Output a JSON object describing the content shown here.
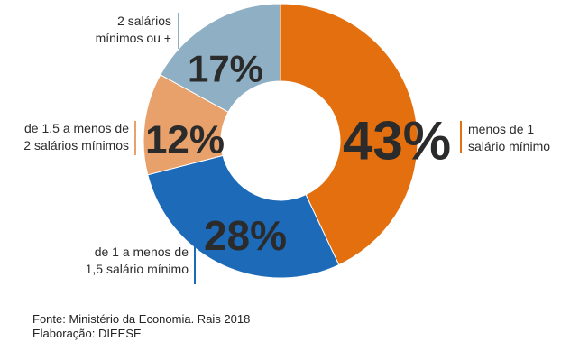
{
  "chart_data": {
    "type": "donut",
    "slices": [
      {
        "label_lines": [
          "menos de 1",
          "salário mínimo"
        ],
        "value": 43,
        "value_label": "43%",
        "color": "#E36F0F"
      },
      {
        "label_lines": [
          "de 1 a menos de",
          "1,5 salário mínimo"
        ],
        "value": 28,
        "value_label": "28%",
        "color": "#1D6BB8"
      },
      {
        "label_lines": [
          "de 1,5 a menos de",
          "2 salários mínimos"
        ],
        "value": 12,
        "value_label": "12%",
        "color": "#E9A16C"
      },
      {
        "label_lines": [
          "2 salários",
          "mínimos ou +"
        ],
        "value": 17,
        "value_label": "17%",
        "color": "#8FB0C4"
      }
    ]
  },
  "footer": {
    "source": "Fonte: Ministério da Economia. Rais 2018",
    "credit": "Elaboração: DIEESE"
  }
}
